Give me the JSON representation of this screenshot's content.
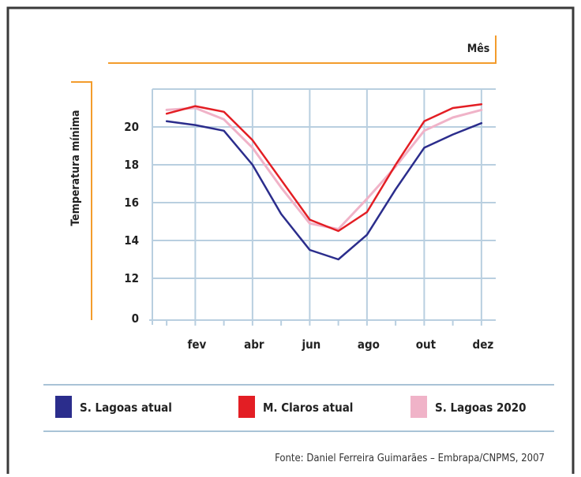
{
  "chart_data": {
    "type": "line",
    "title": "",
    "xlabel": "Mês",
    "ylabel": "Temperatura mínima",
    "x_tick_labels": [
      "fev",
      "abr",
      "jun",
      "ago",
      "out",
      "dez"
    ],
    "y_tick_labels": [
      "0",
      "12",
      "14",
      "16",
      "18",
      "20"
    ],
    "months": [
      1,
      2,
      3,
      4,
      5,
      6,
      7,
      8,
      9,
      10,
      11,
      12
    ],
    "ylim": [
      12,
      22
    ],
    "y_axis_break": "0 shown below 12",
    "grid": true,
    "legend_position": "bottom",
    "series": [
      {
        "name": "S. Lagoas atual",
        "color": "#2b2d8c",
        "values": [
          20.3,
          20.1,
          19.8,
          18.0,
          15.4,
          13.5,
          13.0,
          14.3,
          16.7,
          18.9,
          19.6,
          20.2
        ]
      },
      {
        "name": "M. Claros atual",
        "color": "#e31e24",
        "values": [
          20.7,
          21.1,
          20.8,
          19.3,
          17.2,
          15.1,
          14.5,
          15.5,
          18.0,
          20.3,
          21.0,
          21.2
        ]
      },
      {
        "name": "S. Lagoas 2020",
        "color": "#f0b3c8",
        "values": [
          20.9,
          21.0,
          20.4,
          18.9,
          16.8,
          14.9,
          14.6,
          16.2,
          17.9,
          19.8,
          20.5,
          20.9
        ]
      }
    ]
  },
  "source": "Fonte:  Daniel Ferreira Guimarães – Embrapa/CNPMS, 2007",
  "colors": {
    "accent_orange": "#f39c2c",
    "grid": "#b9cfe0",
    "divider": "#a9c3d6",
    "frame": "#3a3a3a"
  }
}
